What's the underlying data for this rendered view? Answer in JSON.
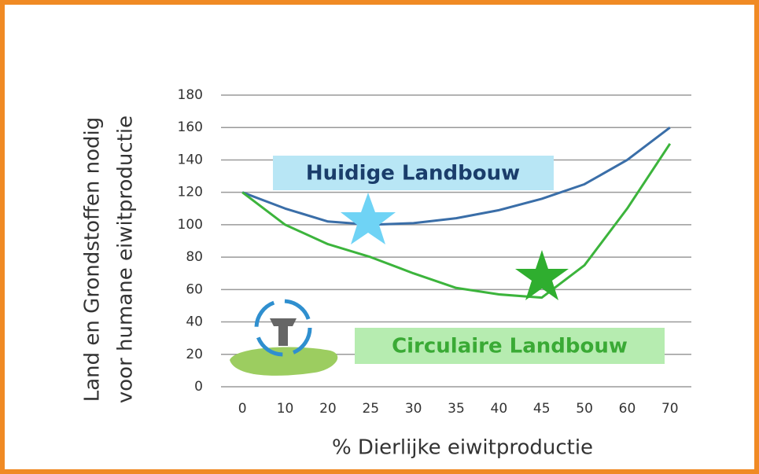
{
  "chart_data": {
    "type": "line",
    "y_label": [
      "Land en Grondstoffen nodig",
      "voor humane eiwitproductie"
    ],
    "x_label": "% Dierlijke eiwitproductie",
    "categories": [
      "0",
      "10",
      "20",
      "25",
      "30",
      "35",
      "40",
      "45",
      "50",
      "60",
      "70"
    ],
    "series": [
      {
        "name": "Huidige Landbouw",
        "color": "#3a6ea8",
        "values": [
          120,
          110,
          102,
          100,
          101,
          104,
          109,
          116,
          125,
          140,
          160
        ]
      },
      {
        "name": "Circulaire Landbouw",
        "color": "#3cb43c",
        "values": [
          120,
          100,
          88,
          80,
          70,
          61,
          57,
          55,
          75,
          110,
          150
        ]
      }
    ],
    "ylim": [
      0,
      180
    ],
    "yticks": [
      0,
      20,
      40,
      60,
      80,
      100,
      120,
      140,
      160,
      180
    ],
    "grid": true
  }
}
